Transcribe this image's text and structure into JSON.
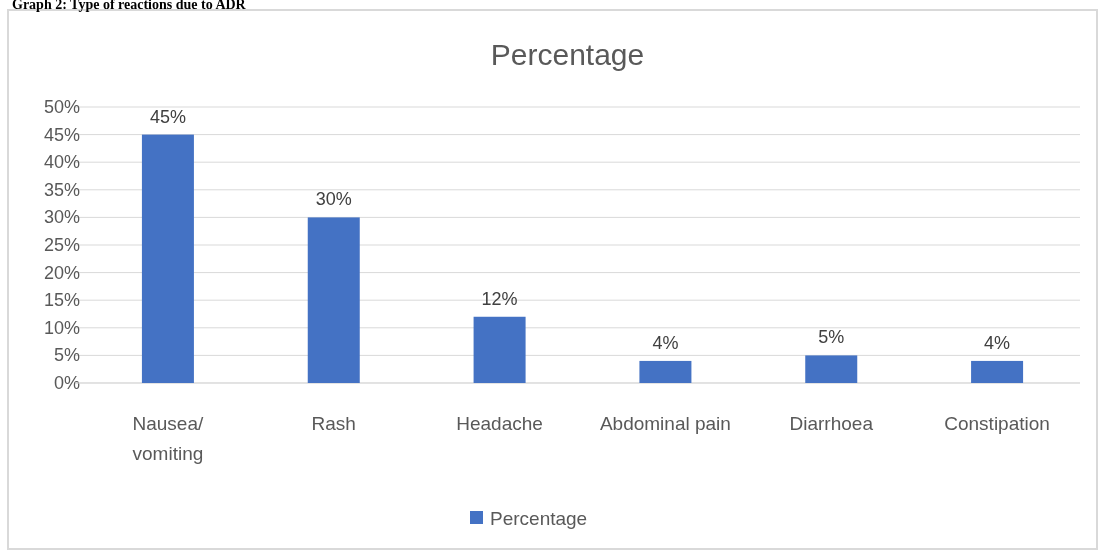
{
  "chart_data": {
    "type": "bar",
    "title": "Percentage",
    "annotations": [
      "Graph 2: Type of reactions due to ADR"
    ],
    "categories": [
      "Nausea/ vomiting",
      "Rash",
      "Headache",
      "Abdominal pain",
      "Diarrhoea",
      "Constipation"
    ],
    "series": [
      {
        "name": "Percentage",
        "color": "#4472c4",
        "values": [
          45,
          30,
          12,
          4,
          5,
          4
        ]
      }
    ],
    "ylim": [
      0,
      50
    ],
    "yticks": [
      {
        "value": 0,
        "label": "0%"
      },
      {
        "value": 5,
        "label": "5%"
      },
      {
        "value": 10,
        "label": "10%"
      },
      {
        "value": 15,
        "label": "15%"
      },
      {
        "value": 20,
        "label": "20%"
      },
      {
        "value": 25,
        "label": "25%"
      },
      {
        "value": 30,
        "label": "30%"
      },
      {
        "value": 35,
        "label": "35%"
      },
      {
        "value": 40,
        "label": "40%"
      },
      {
        "value": 45,
        "label": "45%"
      },
      {
        "value": 50,
        "label": "50%"
      }
    ],
    "value_labels": [
      "45%",
      "30%",
      "12%",
      "4%",
      "5%",
      "4%"
    ],
    "grid": "y",
    "legend": "bottom"
  }
}
